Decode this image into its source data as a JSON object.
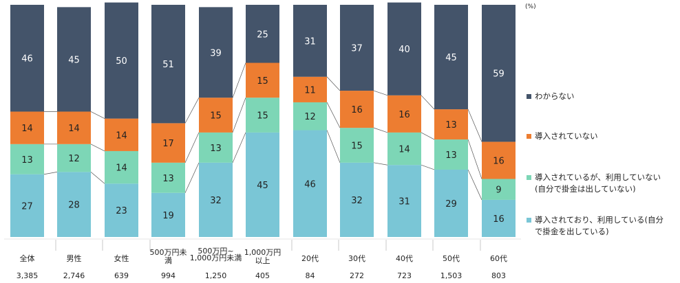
{
  "chart_data": {
    "type": "bar",
    "stacked": true,
    "percent": true,
    "unit": "(%)",
    "ylim": [
      0,
      100
    ],
    "categories": [
      {
        "label": [
          "全体"
        ],
        "n": "3,385"
      },
      {
        "label": [
          "男性"
        ],
        "n": "2,746"
      },
      {
        "label": [
          "女性"
        ],
        "n": "639"
      },
      {
        "label": [
          "500万円未",
          "満"
        ],
        "n": "994",
        "size": "normal"
      },
      {
        "label": [
          "500万円~",
          "1,000万円未満"
        ],
        "n": "1,250",
        "size": "small"
      },
      {
        "label": [
          "1,000万円",
          "以上"
        ],
        "n": "405",
        "size": "normal"
      },
      {
        "label": [
          "20代"
        ],
        "n": "84"
      },
      {
        "label": [
          "30代"
        ],
        "n": "272"
      },
      {
        "label": [
          "40代"
        ],
        "n": "723"
      },
      {
        "label": [
          "50代"
        ],
        "n": "1,503"
      },
      {
        "label": [
          "60代"
        ],
        "n": "803"
      }
    ],
    "series": [
      {
        "name": [
          "導入されており、利用している(自分",
          "で掛金を出している)"
        ],
        "color": "#7ac6d6",
        "values": [
          27,
          28,
          23,
          19,
          32,
          45,
          46,
          32,
          31,
          29,
          16
        ]
      },
      {
        "name": [
          "導入されているが、利用していない",
          "(自分で掛金は出していない)"
        ],
        "color": "#7dd6b6",
        "values": [
          13,
          12,
          14,
          13,
          13,
          15,
          12,
          15,
          14,
          13,
          9
        ]
      },
      {
        "name": [
          "導入されていない"
        ],
        "color": "#ed7d31",
        "values": [
          14,
          14,
          14,
          17,
          15,
          15,
          11,
          16,
          16,
          13,
          16
        ]
      },
      {
        "name": [
          "わからない"
        ],
        "color": "#44546a",
        "values": [
          46,
          45,
          50,
          51,
          39,
          25,
          31,
          37,
          40,
          45,
          59
        ]
      }
    ]
  }
}
